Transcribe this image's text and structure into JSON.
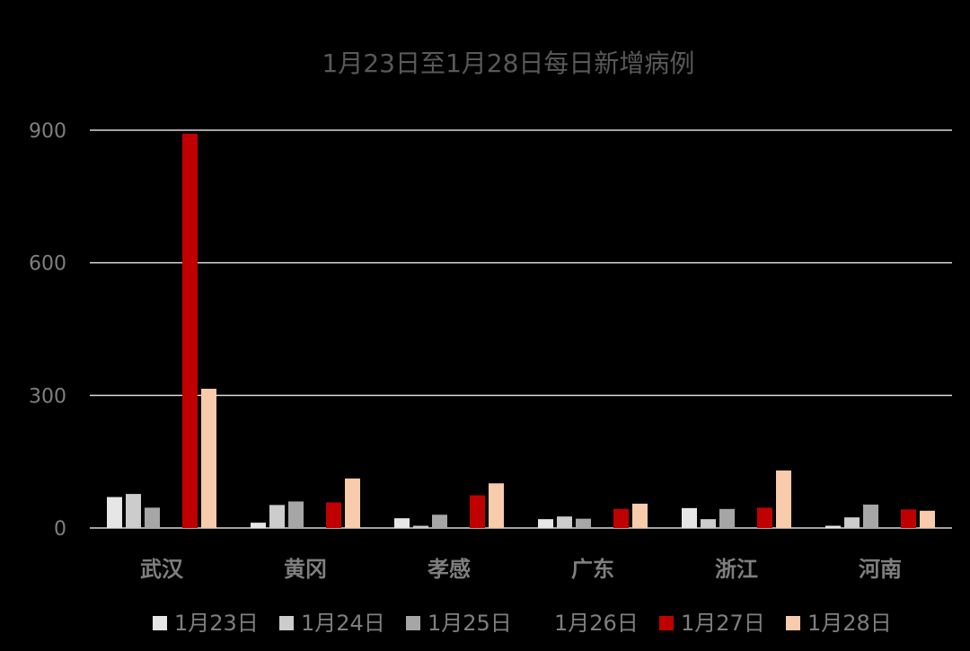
{
  "chart_data": {
    "type": "bar",
    "title": "1月23日至1月28日每日新增病例",
    "xlabel": "",
    "ylabel": "",
    "ylim": [
      0,
      900
    ],
    "yticks": [
      0,
      300,
      600,
      900
    ],
    "grid": true,
    "legend_position": "bottom",
    "categories": [
      "武汉",
      "黄冈",
      "孝感",
      "广东",
      "浙江",
      "河南"
    ],
    "series": [
      {
        "name": "1月23日",
        "color": "#e6e6e6",
        "values": [
          70,
          12,
          22,
          20,
          45,
          5
        ]
      },
      {
        "name": "1月24日",
        "color": "#cccccc",
        "values": [
          77,
          52,
          5,
          26,
          20,
          24
        ]
      },
      {
        "name": "1月25日",
        "color": "#a6a6a6",
        "values": [
          46,
          60,
          30,
          21,
          43,
          53
        ]
      },
      {
        "name": "1月26日",
        "color": "#000000",
        "values": [
          0,
          0,
          0,
          0,
          0,
          0
        ]
      },
      {
        "name": "1月27日",
        "color": "#c00000",
        "values": [
          892,
          58,
          74,
          43,
          46,
          42
        ]
      },
      {
        "name": "1月28日",
        "color": "#f8cbad",
        "values": [
          315,
          112,
          101,
          55,
          130,
          39
        ]
      }
    ]
  }
}
